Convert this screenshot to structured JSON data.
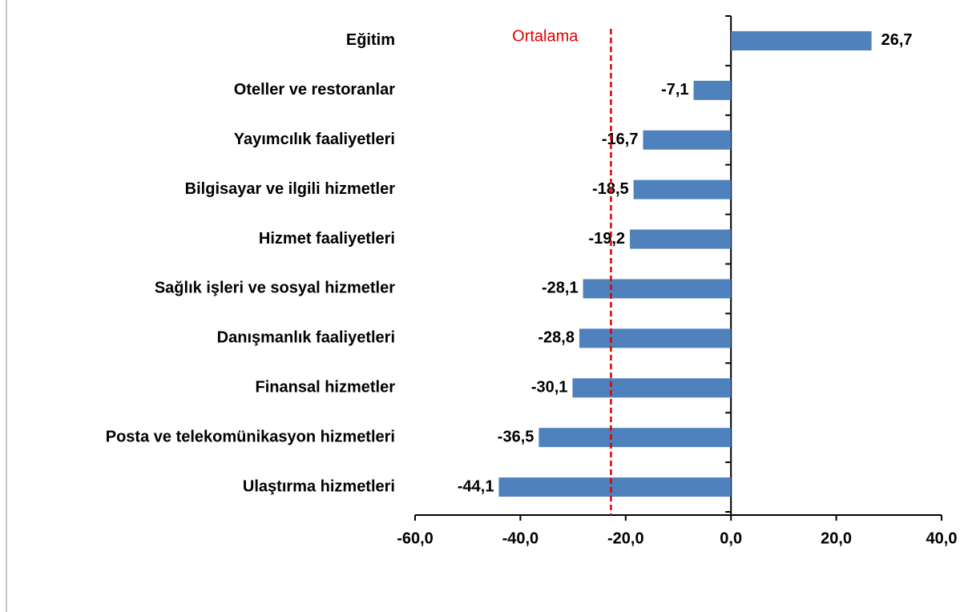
{
  "chart_data": {
    "type": "bar",
    "orientation": "horizontal",
    "categories": [
      "Eğitim",
      "Oteller ve restoranlar",
      "Yayımcılık faaliyetleri",
      "Bilgisayar ve ilgili hizmetler",
      "Hizmet faaliyetleri",
      "Sağlık işleri ve sosyal hizmetler",
      "Danışmanlık faaliyetleri",
      "Finansal hizmetler",
      "Posta ve telekomünikasyon hizmetleri",
      "Ulaştırma hizmetleri"
    ],
    "values": [
      26.7,
      -7.1,
      -16.7,
      -18.5,
      -19.2,
      -28.1,
      -28.8,
      -30.1,
      -36.5,
      -44.1
    ],
    "value_labels": [
      "26,7",
      "-7,1",
      "-16,7",
      "-18,5",
      "-19,2",
      "-28,1",
      "-28,8",
      "-30,1",
      "-36,5",
      "-44,1"
    ],
    "color": "#4f81bd",
    "xlim": [
      -60,
      40
    ],
    "xticks": [
      {
        "value": -60,
        "label": "-60,0"
      },
      {
        "value": -40,
        "label": "-40,0"
      },
      {
        "value": -20,
        "label": "-20,0"
      },
      {
        "value": 0,
        "label": "0,0"
      },
      {
        "value": 20,
        "label": "20,0"
      },
      {
        "value": 40,
        "label": "40,0"
      }
    ],
    "reference_line": {
      "label": "Ortalama",
      "value": -22.8,
      "color": "#e00000"
    }
  }
}
